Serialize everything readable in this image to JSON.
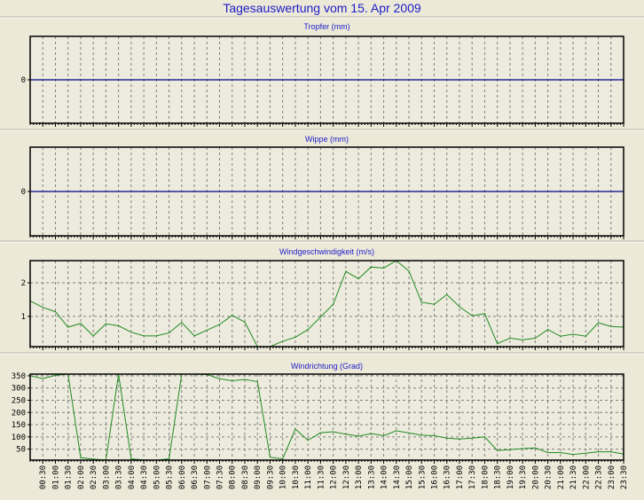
{
  "title": "Tagesauswertung vom 15. Apr 2009",
  "colors": {
    "background": "#ece9d8",
    "plot_background": "#ecebdd",
    "title": "#1c1cc8",
    "zero_line": "#00008b",
    "series": "#228b22",
    "grid": "#808080"
  },
  "x_tick_labels": [
    "00:30",
    "01:00",
    "01:30",
    "02:00",
    "02:30",
    "03:00",
    "03:30",
    "04:00",
    "04:30",
    "05:00",
    "05:30",
    "06:00",
    "06:30",
    "07:00",
    "07:30",
    "08:00",
    "08:30",
    "09:00",
    "09:30",
    "10:00",
    "10:30",
    "11:00",
    "11:30",
    "12:00",
    "12:30",
    "13:00",
    "13:30",
    "14:00",
    "14:30",
    "15:00",
    "15:30",
    "16:00",
    "16:30",
    "17:00",
    "17:30",
    "18:00",
    "18:30",
    "19:00",
    "19:30",
    "20:00",
    "20:30",
    "21:00",
    "21:30",
    "22:00",
    "22:30",
    "23:00",
    "23:30"
  ],
  "chart_data": [
    {
      "type": "line",
      "title": "Tropfer (mm)",
      "yticks": [
        0
      ],
      "ylim": [
        -1,
        1
      ],
      "grid": "vertical dashed",
      "zero_line": true,
      "series": []
    },
    {
      "type": "line",
      "title": "Wippe (mm)",
      "yticks": [
        0
      ],
      "ylim": [
        -1,
        1
      ],
      "grid": "vertical dashed",
      "zero_line": true,
      "series": []
    },
    {
      "type": "line",
      "title": "Windgeschwindigkeit (m/s)",
      "yticks": [
        1,
        2
      ],
      "ylim": [
        0.1,
        2.66
      ],
      "grid": "dashed both",
      "x": [
        "00:00",
        "00:30",
        "01:00",
        "01:30",
        "02:00",
        "02:30",
        "03:00",
        "03:30",
        "04:00",
        "04:30",
        "05:00",
        "05:30",
        "06:00",
        "06:30",
        "07:00",
        "07:30",
        "08:00",
        "08:30",
        "09:00",
        "09:30",
        "10:00",
        "10:30",
        "11:00",
        "11:30",
        "12:00",
        "12:30",
        "13:00",
        "13:30",
        "14:00",
        "14:30",
        "15:00",
        "15:30",
        "16:00",
        "16:30",
        "17:00",
        "17:30",
        "18:00",
        "18:30",
        "19:00",
        "19:30",
        "20:00",
        "20:30",
        "21:00",
        "21:30",
        "22:00",
        "22:30",
        "23:00",
        "23:30"
      ],
      "series": [
        {
          "values": [
            1.46,
            1.27,
            1.14,
            0.68,
            0.79,
            0.42,
            0.78,
            0.72,
            0.53,
            0.42,
            0.42,
            0.51,
            0.82,
            0.42,
            0.59,
            0.76,
            1.03,
            0.83,
            0.1,
            0.1,
            0.26,
            0.38,
            0.61,
            0.98,
            1.36,
            2.34,
            2.12,
            2.47,
            2.44,
            2.66,
            2.35,
            1.42,
            1.36,
            1.65,
            1.29,
            1.02,
            1.08,
            0.19,
            0.35,
            0.3,
            0.35,
            0.61,
            0.41,
            0.47,
            0.41,
            0.81,
            0.7,
            0.68
          ]
        }
      ]
    },
    {
      "type": "line",
      "title": "Windrichtung (Grad)",
      "yticks": [
        50,
        100,
        150,
        200,
        250,
        300,
        350
      ],
      "ylim": [
        5,
        357
      ],
      "grid": "dashed both",
      "xlabels": true,
      "x": [
        "00:00",
        "00:30",
        "01:00",
        "01:30",
        "02:00",
        "02:30",
        "03:00",
        "03:30",
        "04:00",
        "04:30",
        "05:00",
        "05:30",
        "06:00",
        "06:30",
        "07:00",
        "07:30",
        "08:00",
        "08:30",
        "09:00",
        "09:30",
        "10:00",
        "10:30",
        "11:00",
        "11:30",
        "12:00",
        "12:30",
        "13:00",
        "13:30",
        "14:00",
        "14:30",
        "15:00",
        "15:30",
        "16:00",
        "16:30",
        "17:00",
        "17:30",
        "18:00",
        "18:30",
        "19:00",
        "19:30",
        "20:00",
        "20:30",
        "21:00",
        "21:30",
        "22:00",
        "22:30",
        "23:00",
        "23:30"
      ],
      "series": [
        {
          "values": [
            350,
            339,
            352,
            357,
            15,
            9,
            5,
            357,
            10,
            6,
            5,
            10,
            357,
            357,
            355,
            338,
            330,
            335,
            326,
            17,
            10,
            132,
            86,
            117,
            121,
            111,
            103,
            114,
            105,
            125,
            116,
            107,
            105,
            95,
            91,
            95,
            100,
            44,
            48,
            52,
            55,
            36,
            36,
            28,
            33,
            39,
            39,
            30
          ]
        }
      ]
    }
  ]
}
